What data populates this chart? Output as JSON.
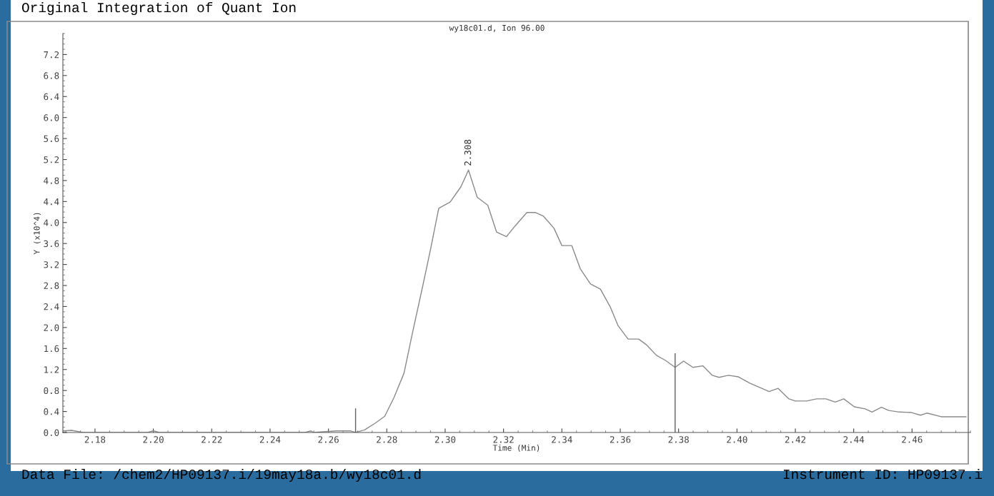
{
  "chart_data": {
    "type": "line",
    "title": "Original Integration of Quant Ion",
    "subtitle": "wy18c01.d, Ion 96.00",
    "xlabel": "Time (Min)",
    "ylabel": "Y (x10^4)",
    "xlim": [
      2.169,
      2.48
    ],
    "ylim": [
      0,
      7.6
    ],
    "xticks": [
      2.18,
      {
        "value": 2.2,
        "label": "2.20"
      },
      2.22,
      2.24,
      2.26,
      2.28,
      {
        "value": 2.3,
        "label": "2.30"
      },
      2.32,
      2.34,
      2.36,
      2.38,
      {
        "value": 2.4,
        "label": "2.40"
      },
      2.42,
      2.44,
      2.46
    ],
    "yticks": [
      {
        "value": 0,
        "label": "0.0"
      },
      0.4,
      0.8,
      1.2,
      1.6,
      {
        "value": 2,
        "label": "2.0"
      },
      2.4,
      2.8,
      3.2,
      3.6,
      {
        "value": 4,
        "label": "4.0"
      },
      4.4,
      4.8,
      5.2,
      5.6,
      {
        "value": 6,
        "label": "6.0"
      },
      6.4,
      6.8,
      7.2
    ],
    "grid": false,
    "legend": false,
    "marker": "none",
    "line_style": "solid",
    "series": [
      {
        "color": "#8a8a8a",
        "x": [
          2.169,
          2.172,
          2.176,
          2.198,
          2.2,
          2.202,
          2.252,
          2.254,
          2.2549,
          2.2627,
          2.2676,
          2.2693,
          2.2724,
          2.2761,
          2.2793,
          2.2825,
          2.2859,
          2.289,
          2.2922,
          2.2951,
          2.2978,
          2.3017,
          2.3054,
          2.308,
          2.311,
          2.3146,
          2.3176,
          2.321,
          2.3239,
          2.328,
          2.331,
          2.3337,
          2.3373,
          2.34,
          2.3434,
          2.3463,
          2.3498,
          2.3532,
          2.3566,
          2.3593,
          2.3627,
          2.3663,
          2.369,
          2.3724,
          2.3756,
          2.3788,
          2.3817,
          2.3849,
          2.3883,
          2.3915,
          2.3939,
          2.3971,
          2.4005,
          2.4044,
          2.411,
          2.4141,
          2.4178,
          2.42,
          2.4239,
          2.4273,
          2.4305,
          2.4337,
          2.4366,
          2.4402,
          2.4439,
          2.4463,
          2.4495,
          2.452,
          2.4556,
          2.4598,
          2.4629,
          2.4651,
          2.47,
          2.4785
        ],
        "values": [
          0.03,
          0.04,
          0,
          0,
          0.03,
          0,
          0,
          0.03,
          0,
          0.03,
          0.03,
          0,
          0.05,
          0.18,
          0.31,
          0.67,
          1.13,
          1.95,
          2.76,
          3.52,
          4.27,
          4.39,
          4.68,
          5.0,
          4.48,
          4.33,
          3.82,
          3.73,
          3.93,
          4.19,
          4.19,
          4.12,
          3.89,
          3.56,
          3.56,
          3.12,
          2.83,
          2.73,
          2.39,
          2.03,
          1.78,
          1.78,
          1.67,
          1.47,
          1.37,
          1.24,
          1.36,
          1.24,
          1.27,
          1.09,
          1.05,
          1.09,
          1.06,
          0.94,
          0.78,
          0.84,
          0.64,
          0.6,
          0.6,
          0.64,
          0.64,
          0.58,
          0.64,
          0.49,
          0.45,
          0.39,
          0.48,
          0.42,
          0.39,
          0.38,
          0.33,
          0.37,
          0.3,
          0.3
        ]
      },
      {
        "color": "#606060",
        "x": [
          2.2693,
          2.2693
        ],
        "values": [
          0,
          0.45
        ]
      },
      {
        "color": "#606060",
        "x": [
          2.3788,
          2.3788
        ],
        "values": [
          0,
          1.5
        ]
      }
    ],
    "annotations": [
      {
        "text": "2.308",
        "x": 2.308,
        "y": 5.0
      },
      "Data File: /chem2/HP09137.i/19may18a.b/wy18c01.d",
      "Instrument ID: HP09137.i"
    ]
  }
}
